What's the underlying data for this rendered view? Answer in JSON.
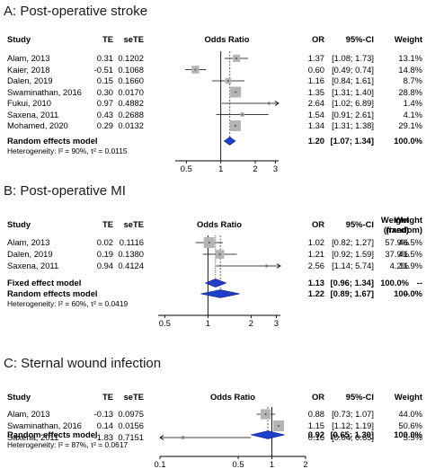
{
  "columns": {
    "study": "Study",
    "te": "TE",
    "sete": "seTE",
    "or_plot": "Odds Ratio",
    "or": "OR",
    "ci": "95%-CI",
    "weight": "Weight",
    "weight_fixed": "Weight\n(fixed)",
    "weight_random": "Weight\n(random)"
  },
  "colors": {
    "box": "#b4b4b4",
    "diamond": "#1f3fc8",
    "diamond_edge": "#0b1a8a",
    "line": "#000000"
  },
  "chart_data": [
    {
      "type": "forest",
      "title": "A: Post-operative stroke",
      "scale": "log",
      "xlim": [
        0.4,
        3.2
      ],
      "ticks": [
        {
          "value": 0.5,
          "label": "0.5"
        },
        {
          "value": 1,
          "label": "1"
        },
        {
          "value": 2,
          "label": "2"
        },
        {
          "value": 3,
          "label": "3"
        }
      ],
      "studies": [
        {
          "name": "Alam, 2013",
          "te": "0.31",
          "sete": "0.1202",
          "or": 1.37,
          "lo": 1.08,
          "hi": 1.73,
          "or_text": "1.37",
          "ci_text": "[1.08; 1.73]",
          "weight": 13.1,
          "weight_text": "13.1%"
        },
        {
          "name": "Kaier, 2018",
          "te": "-0.51",
          "sete": "0.1068",
          "or": 0.6,
          "lo": 0.49,
          "hi": 0.74,
          "or_text": "0.60",
          "ci_text": "[0.49; 0.74]",
          "weight": 14.8,
          "weight_text": "14.8%"
        },
        {
          "name": "Dalen, 2019",
          "te": "0.15",
          "sete": "0.1660",
          "or": 1.16,
          "lo": 0.84,
          "hi": 1.61,
          "or_text": "1.16",
          "ci_text": "[0.84; 1.61]",
          "weight": 8.7,
          "weight_text": "8.7%"
        },
        {
          "name": "Swaminathan, 2016",
          "te": "0.30",
          "sete": "0.0170",
          "or": 1.35,
          "lo": 1.31,
          "hi": 1.4,
          "or_text": "1.35",
          "ci_text": "[1.31; 1.40]",
          "weight": 28.8,
          "weight_text": "28.8%"
        },
        {
          "name": "Fukui, 2010",
          "te": "0.97",
          "sete": "0.4882",
          "or": 2.64,
          "lo": 1.02,
          "hi": 6.89,
          "or_text": "2.64",
          "ci_text": "[1.02; 6.89]",
          "weight": 1.4,
          "weight_text": "1.4%"
        },
        {
          "name": "Saxena, 2011",
          "te": "0.43",
          "sete": "0.2688",
          "or": 1.54,
          "lo": 0.91,
          "hi": 2.61,
          "or_text": "1.54",
          "ci_text": "[0.91; 2.61]",
          "weight": 4.1,
          "weight_text": "4.1%"
        },
        {
          "name": "Mohamed, 2020",
          "te": "0.29",
          "sete": "0.0132",
          "or": 1.34,
          "lo": 1.31,
          "hi": 1.38,
          "or_text": "1.34",
          "ci_text": "[1.31; 1.38]",
          "weight": 29.1,
          "weight_text": "29.1%"
        }
      ],
      "pooled": [
        {
          "name": "Random effects model",
          "or": 1.2,
          "lo": 1.07,
          "hi": 1.34,
          "or_text": "1.20",
          "ci_text": "[1.07; 1.34]",
          "weight_text": "100.0%"
        }
      ],
      "heterogeneity": "Heterogeneity: I² = 90%, τ² = 0.0115"
    },
    {
      "type": "forest",
      "title": "B: Post-operative MI",
      "scale": "log",
      "xlim": [
        0.45,
        3.2
      ],
      "ticks": [
        {
          "value": 0.5,
          "label": "0.5"
        },
        {
          "value": 1,
          "label": "1"
        },
        {
          "value": 2,
          "label": "2"
        },
        {
          "value": 3,
          "label": "3"
        }
      ],
      "studies": [
        {
          "name": "Alam, 2013",
          "te": "0.02",
          "sete": "0.1116",
          "or": 1.02,
          "lo": 0.82,
          "hi": 1.27,
          "or_text": "1.02",
          "ci_text": "[0.82; 1.27]",
          "weight": 57.9,
          "weight_fixed_text": "57.9%",
          "weight_random_text": "46.5%"
        },
        {
          "name": "Dalen, 2019",
          "te": "0.19",
          "sete": "0.1380",
          "or": 1.21,
          "lo": 0.92,
          "hi": 1.59,
          "or_text": "1.21",
          "ci_text": "[0.92; 1.59]",
          "weight": 37.9,
          "weight_fixed_text": "37.9%",
          "weight_random_text": "41.5%"
        },
        {
          "name": "Saxena, 2011",
          "te": "0.94",
          "sete": "0.4124",
          "or": 2.56,
          "lo": 1.14,
          "hi": 5.74,
          "or_text": "2.56",
          "ci_text": "[1.14; 5.74]",
          "weight": 4.2,
          "weight_fixed_text": "4.2%",
          "weight_random_text": "11.9%"
        }
      ],
      "pooled": [
        {
          "name": "Fixed effect model",
          "or": 1.13,
          "lo": 0.96,
          "hi": 1.34,
          "or_text": "1.13",
          "ci_text": "[0.96; 1.34]",
          "weight_fixed_text": "100.0%",
          "weight_random_text": "--"
        },
        {
          "name": "Random effects model",
          "or": 1.22,
          "lo": 0.89,
          "hi": 1.67,
          "or_text": "1.22",
          "ci_text": "[0.89; 1.67]",
          "weight_fixed_text": "--",
          "weight_random_text": "100.0%"
        }
      ],
      "heterogeneity": "Heterogeneity: I² = 60%, τ² = 0.0419"
    },
    {
      "type": "forest",
      "title": "C: Sternal wound infection",
      "scale": "log",
      "xlim": [
        0.1,
        2
      ],
      "ticks": [
        {
          "value": 0.1,
          "label": "0.1"
        },
        {
          "value": 0.5,
          "label": "0.5"
        },
        {
          "value": 1,
          "label": "1"
        },
        {
          "value": 2,
          "label": "2"
        }
      ],
      "studies": [
        {
          "name": "Alam, 2013",
          "te": "-0.13",
          "sete": "0.0975",
          "or": 0.88,
          "lo": 0.73,
          "hi": 1.07,
          "or_text": "0.88",
          "ci_text": "[0.73; 1.07]",
          "weight": 44.0,
          "weight_text": "44.0%"
        },
        {
          "name": "Swaminathan, 2016",
          "te": "0.14",
          "sete": "0.0156",
          "or": 1.15,
          "lo": 1.12,
          "hi": 1.19,
          "or_text": "1.15",
          "ci_text": "[1.12; 1.19]",
          "weight": 50.6,
          "weight_text": "50.6%"
        },
        {
          "name": "Saxena, 2011",
          "te": "-1.83",
          "sete": "0.7151",
          "or": 0.16,
          "lo": 0.04,
          "hi": 0.65,
          "or_text": "0.16",
          "ci_text": "[0.04; 0.65]",
          "weight": 5.5,
          "weight_text": "5.5%"
        }
      ],
      "pooled": [
        {
          "name": "Random effects model",
          "or": 0.92,
          "lo": 0.65,
          "hi": 1.3,
          "or_text": "0.92",
          "ci_text": "[0.65; 1.30]",
          "weight_text": "100.0%"
        }
      ],
      "heterogeneity": "Heterogeneity: I² = 87%, τ² = 0.0617"
    }
  ]
}
